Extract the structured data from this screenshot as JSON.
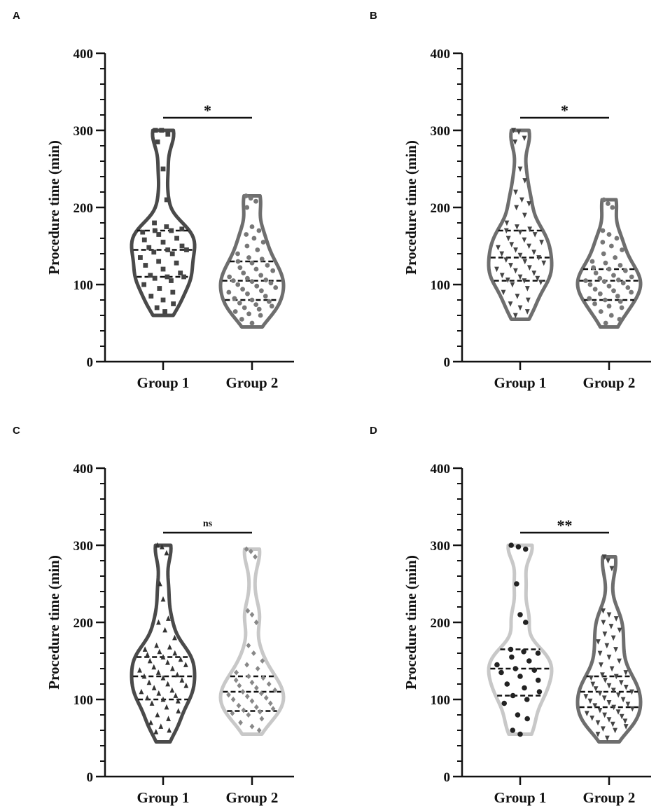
{
  "chart_data": [
    {
      "panel": "A",
      "type": "violin",
      "ylabel": "Procedure time (min)",
      "ylim": [
        0,
        400
      ],
      "yticks": [
        0,
        100,
        200,
        300,
        400
      ],
      "categories": [
        "Group 1",
        "Group 2"
      ],
      "significance": "*",
      "series": [
        {
          "category": "Group 1",
          "color": "#4a4a4a",
          "marker": "square",
          "min": 60,
          "max": 300,
          "median": 145,
          "q1": 110,
          "q3": 170,
          "points": [
            300,
            300,
            295,
            285,
            250,
            210,
            180,
            175,
            172,
            170,
            170,
            168,
            165,
            160,
            158,
            155,
            150,
            148,
            145,
            145,
            142,
            140,
            135,
            130,
            128,
            125,
            120,
            115,
            112,
            110,
            110,
            108,
            105,
            100,
            95,
            90,
            85,
            80,
            75,
            70,
            65
          ]
        },
        {
          "category": "Group 2",
          "color": "#6e6e6e",
          "marker": "circle",
          "min": 45,
          "max": 215,
          "median": 105,
          "q1": 80,
          "q3": 130,
          "points": [
            215,
            212,
            208,
            200,
            175,
            170,
            165,
            160,
            155,
            150,
            145,
            140,
            135,
            133,
            130,
            128,
            125,
            122,
            120,
            118,
            115,
            112,
            110,
            108,
            106,
            105,
            104,
            102,
            100,
            98,
            96,
            94,
            92,
            90,
            88,
            85,
            82,
            80,
            78,
            76,
            74,
            72,
            70,
            68,
            65,
            62,
            60,
            55,
            50
          ]
        }
      ]
    },
    {
      "panel": "B",
      "type": "violin",
      "ylabel": "Procedure time (min)",
      "ylim": [
        0,
        400
      ],
      "yticks": [
        0,
        100,
        200,
        300,
        400
      ],
      "categories": [
        "Group 1",
        "Group 2"
      ],
      "significance": "*",
      "series": [
        {
          "category": "Group 1",
          "color": "#6e6e6e",
          "marker": "triangle-down",
          "min": 55,
          "max": 300,
          "median": 135,
          "q1": 105,
          "q3": 170,
          "points": [
            300,
            298,
            290,
            285,
            250,
            235,
            220,
            210,
            205,
            200,
            190,
            180,
            175,
            172,
            170,
            168,
            165,
            160,
            158,
            155,
            152,
            150,
            148,
            145,
            142,
            140,
            138,
            135,
            132,
            130,
            128,
            125,
            122,
            120,
            118,
            115,
            112,
            110,
            108,
            106,
            105,
            103,
            100,
            95,
            90,
            85,
            80,
            75,
            70,
            65,
            60
          ]
        },
        {
          "category": "Group 2",
          "color": "#6e6e6e",
          "marker": "circle",
          "min": 45,
          "max": 210,
          "median": 105,
          "q1": 80,
          "q3": 120,
          "points": [
            210,
            205,
            200,
            170,
            165,
            160,
            155,
            150,
            145,
            140,
            135,
            130,
            128,
            125,
            122,
            120,
            118,
            115,
            112,
            110,
            108,
            106,
            105,
            104,
            102,
            100,
            98,
            96,
            94,
            92,
            90,
            88,
            85,
            82,
            80,
            78,
            75,
            72,
            70,
            65,
            60,
            55,
            50
          ]
        }
      ]
    },
    {
      "panel": "C",
      "type": "violin",
      "ylabel": "Procedure time (min)",
      "ylim": [
        0,
        400
      ],
      "yticks": [
        0,
        100,
        200,
        300,
        400
      ],
      "categories": [
        "Group 1",
        "Group 2"
      ],
      "significance": "ns",
      "series": [
        {
          "category": "Group 1",
          "color": "#4a4a4a",
          "marker": "triangle-up",
          "min": 45,
          "max": 300,
          "median": 130,
          "q1": 100,
          "q3": 155,
          "points": [
            300,
            298,
            290,
            250,
            230,
            205,
            200,
            190,
            180,
            170,
            168,
            165,
            162,
            160,
            158,
            155,
            152,
            150,
            148,
            145,
            142,
            140,
            138,
            135,
            132,
            130,
            128,
            125,
            122,
            120,
            118,
            115,
            112,
            110,
            108,
            105,
            102,
            100,
            98,
            95,
            90,
            85,
            80,
            75,
            70,
            65,
            60,
            58
          ]
        },
        {
          "category": "Group 2",
          "color": "#c8c8c8",
          "marker": "diamond",
          "min": 55,
          "max": 295,
          "median": 110,
          "q1": 85,
          "q3": 130,
          "points": [
            295,
            292,
            285,
            215,
            210,
            200,
            170,
            160,
            150,
            145,
            140,
            135,
            130,
            128,
            125,
            122,
            120,
            118,
            115,
            112,
            110,
            108,
            106,
            104,
            102,
            100,
            98,
            95,
            92,
            90,
            88,
            86,
            84,
            82,
            80,
            75,
            70,
            65,
            60
          ]
        }
      ]
    },
    {
      "panel": "D",
      "type": "violin",
      "ylabel": "Procedure time (min)",
      "ylim": [
        0,
        400
      ],
      "yticks": [
        0,
        100,
        200,
        300,
        400
      ],
      "categories": [
        "Group 1",
        "Group 2"
      ],
      "significance": "**",
      "series": [
        {
          "category": "Group 1",
          "color": "#c8c8c8",
          "marker": "circle-dark",
          "min": 55,
          "max": 300,
          "median": 140,
          "q1": 105,
          "q3": 165,
          "points": [
            300,
            298,
            295,
            250,
            210,
            200,
            165,
            162,
            160,
            155,
            150,
            145,
            140,
            138,
            135,
            130,
            125,
            120,
            115,
            110,
            105,
            100,
            95,
            80,
            75,
            60,
            55
          ]
        },
        {
          "category": "Group 2",
          "color": "#6e6e6e",
          "marker": "triangle-down",
          "min": 45,
          "max": 285,
          "median": 110,
          "q1": 90,
          "q3": 130,
          "points": [
            285,
            280,
            270,
            215,
            210,
            205,
            200,
            195,
            190,
            185,
            180,
            175,
            170,
            165,
            160,
            155,
            150,
            145,
            140,
            135,
            132,
            130,
            128,
            125,
            122,
            120,
            118,
            116,
            114,
            112,
            110,
            108,
            106,
            104,
            102,
            100,
            98,
            96,
            94,
            92,
            90,
            88,
            86,
            84,
            82,
            80,
            78,
            76,
            74,
            72,
            70,
            68,
            65,
            62,
            60,
            55,
            50
          ]
        }
      ]
    }
  ]
}
